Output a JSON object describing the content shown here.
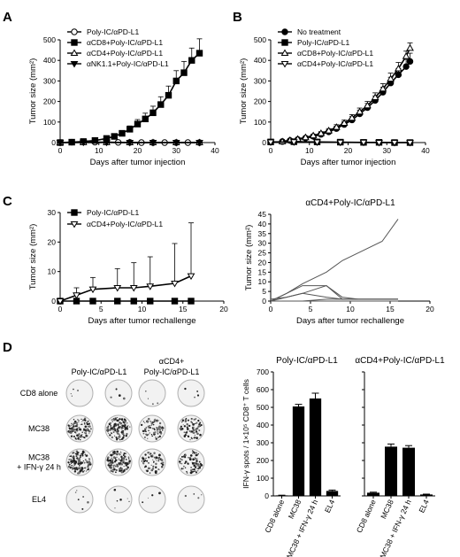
{
  "panels": {
    "a": "A",
    "b": "B",
    "c": "C",
    "d": "D"
  },
  "chart_data": [
    {
      "id": "A",
      "type": "line",
      "xlabel": "Days after tumor injection",
      "ylabel": "Tumor size (mm²)",
      "xlim": [
        0,
        40
      ],
      "ylim": [
        0,
        500
      ],
      "xticks": [
        0,
        10,
        20,
        30,
        40
      ],
      "yticks": [
        0,
        100,
        200,
        300,
        400,
        500
      ],
      "legend_position": "top-left",
      "series": [
        {
          "name": "Poly-IC/αPD-L1",
          "marker": "open-circle",
          "x": [
            0,
            3,
            6,
            9,
            12,
            15,
            18,
            21,
            24,
            27,
            30,
            33,
            36
          ],
          "y": [
            0,
            2,
            3,
            2,
            2,
            1,
            1,
            0,
            0,
            0,
            0,
            0,
            0
          ]
        },
        {
          "name": "αCD8+Poly-IC/αPD-L1",
          "marker": "filled-square",
          "x": [
            0,
            3,
            6,
            9,
            12,
            14,
            16,
            18,
            20,
            22,
            24,
            26,
            28,
            30,
            32,
            34,
            36
          ],
          "y": [
            0,
            2,
            5,
            10,
            20,
            30,
            45,
            65,
            90,
            115,
            145,
            185,
            230,
            300,
            340,
            400,
            435
          ],
          "err": [
            0,
            1,
            2,
            4,
            6,
            8,
            12,
            16,
            22,
            28,
            32,
            38,
            45,
            50,
            55,
            60,
            70
          ]
        },
        {
          "name": "αCD4+Poly-IC/αPD-L1",
          "marker": "open-triangle-up",
          "x": [
            0,
            6,
            12,
            18,
            24,
            30,
            36
          ],
          "y": [
            0,
            1,
            1,
            0,
            0,
            0,
            0
          ]
        },
        {
          "name": "αNK1.1+Poly-IC/αPD-L1",
          "marker": "filled-triangle-down",
          "x": [
            0,
            6,
            12,
            18,
            24,
            30,
            36
          ],
          "y": [
            0,
            1,
            1,
            0,
            0,
            0,
            0
          ]
        }
      ]
    },
    {
      "id": "B",
      "type": "line",
      "xlabel": "Days after tumor injection",
      "ylabel": "Tumor size (mm²)",
      "xlim": [
        0,
        40
      ],
      "ylim": [
        0,
        500
      ],
      "xticks": [
        0,
        10,
        20,
        30,
        40
      ],
      "yticks": [
        0,
        100,
        200,
        300,
        400,
        500
      ],
      "legend_position": "top-left",
      "series": [
        {
          "name": "No treatment",
          "marker": "filled-circle",
          "x": [
            3,
            5,
            7,
            9,
            11,
            13,
            15,
            17,
            19,
            21,
            23,
            25,
            27,
            29,
            31,
            33,
            35,
            36
          ],
          "y": [
            5,
            10,
            15,
            22,
            30,
            40,
            52,
            68,
            88,
            110,
            140,
            170,
            205,
            245,
            290,
            330,
            370,
            395
          ],
          "err": [
            2,
            3,
            4,
            5,
            6,
            8,
            10,
            12,
            14,
            16,
            18,
            20,
            22,
            25,
            28,
            30,
            35,
            40
          ]
        },
        {
          "name": "Poly-IC/αPD-L1",
          "marker": "filled-square",
          "x": [
            0,
            6,
            12,
            18,
            24,
            28,
            32,
            36
          ],
          "y": [
            3,
            4,
            3,
            2,
            1,
            1,
            0,
            0
          ]
        },
        {
          "name": "αCD8+Poly-IC/αPD-L1",
          "marker": "open-triangle-up",
          "x": [
            3,
            5,
            7,
            9,
            11,
            13,
            15,
            17,
            19,
            21,
            23,
            25,
            27,
            29,
            31,
            33,
            35,
            36
          ],
          "y": [
            5,
            11,
            17,
            25,
            34,
            45,
            58,
            75,
            95,
            120,
            150,
            180,
            220,
            262,
            310,
            360,
            420,
            460
          ],
          "err": [
            2,
            3,
            4,
            5,
            6,
            8,
            10,
            12,
            14,
            16,
            18,
            20,
            22,
            25,
            28,
            30,
            25,
            25
          ]
        },
        {
          "name": "αCD4+Poly-IC/αPD-L1",
          "marker": "open-triangle-down",
          "x": [
            0,
            6,
            12,
            18,
            24,
            28,
            32,
            36
          ],
          "y": [
            2,
            3,
            2,
            1,
            1,
            0,
            0,
            0
          ]
        }
      ]
    },
    {
      "id": "C-left",
      "type": "line",
      "xlabel": "Days after tumor rechallenge",
      "ylabel": "Tumor size (mm²)",
      "xlim": [
        0,
        20
      ],
      "ylim": [
        0,
        30
      ],
      "xticks": [
        0,
        5,
        10,
        15,
        20
      ],
      "yticks": [
        0,
        10,
        20,
        30
      ],
      "legend_position": "top-left",
      "series": [
        {
          "name": "Poly-IC/αPD-L1",
          "marker": "filled-square",
          "x": [
            0,
            2,
            4,
            7,
            9,
            11,
            14,
            16
          ],
          "y": [
            0,
            0,
            0,
            0,
            0,
            0,
            0,
            0
          ]
        },
        {
          "name": "αCD4+Poly-IC/αPD-L1",
          "marker": "open-triangle-down",
          "x": [
            0,
            2,
            4,
            7,
            9,
            11,
            14,
            16
          ],
          "y": [
            0,
            2,
            4,
            4.5,
            4.5,
            5,
            6,
            8.5
          ],
          "err": [
            0,
            2.5,
            4,
            6.5,
            8.5,
            10,
            13.5,
            18
          ]
        }
      ]
    },
    {
      "id": "C-right",
      "type": "line",
      "title": "αCD4+Poly-IC/αPD-L1",
      "xlabel": "Days after tumor rechallenge",
      "ylabel": "Tumor size (mm²)",
      "xlim": [
        0,
        20
      ],
      "ylim": [
        0,
        45
      ],
      "xticks": [
        0,
        5,
        10,
        15,
        20
      ],
      "yticks": [
        0,
        5,
        10,
        15,
        20,
        25,
        30,
        35,
        40,
        45
      ],
      "series": [
        {
          "x": [
            0,
            2,
            4,
            7,
            9,
            11,
            14,
            16
          ],
          "y": [
            0,
            4,
            9,
            15,
            21,
            25,
            31,
            42.5
          ]
        },
        {
          "x": [
            0,
            2,
            4,
            7,
            9,
            11,
            14,
            16
          ],
          "y": [
            0,
            4,
            8,
            8,
            2,
            1,
            1,
            1
          ]
        },
        {
          "x": [
            0,
            2,
            4,
            7,
            9,
            11,
            14,
            16
          ],
          "y": [
            0,
            2,
            4,
            2,
            1,
            1,
            1,
            1
          ]
        },
        {
          "x": [
            0,
            2,
            4,
            7,
            9,
            11,
            14,
            16
          ],
          "y": [
            1,
            2,
            4,
            8,
            1,
            1,
            1,
            1
          ]
        },
        {
          "x": [
            0,
            2,
            4,
            7,
            9,
            11,
            14,
            16
          ],
          "y": [
            0,
            0,
            0,
            1,
            1,
            1,
            1,
            1
          ]
        },
        {
          "x": [
            0,
            2,
            4,
            7,
            9,
            11,
            14,
            16
          ],
          "y": [
            0,
            0,
            0,
            0,
            0,
            0,
            0,
            0
          ]
        }
      ]
    },
    {
      "id": "D-bar-left",
      "type": "bar",
      "title": "Poly-IC/αPD-L1",
      "ylabel": "IFN-γ spots / 1×10⁵ CD8⁺ T cells",
      "ylim": [
        0,
        700
      ],
      "yticks": [
        0,
        100,
        200,
        300,
        400,
        500,
        600,
        700
      ],
      "categories": [
        "CD8 alone",
        "MC38",
        "MC38 + IFN-γ 24 h",
        "EL4"
      ],
      "values": [
        3,
        505,
        550,
        28
      ],
      "err": [
        1,
        12,
        30,
        5
      ]
    },
    {
      "id": "D-bar-right",
      "type": "bar",
      "title": "αCD4+Poly-IC/αPD-L1",
      "ylim": [
        0,
        700
      ],
      "yticks": [
        0,
        100,
        200,
        300,
        400,
        500,
        600,
        700
      ],
      "categories": [
        "CD8 alone",
        "MC38",
        "MC38 + IFN-γ 24 h",
        "EL4"
      ],
      "values": [
        18,
        278,
        272,
        8
      ],
      "err": [
        3,
        15,
        12,
        2
      ]
    }
  ],
  "elispot": {
    "col_titles": [
      [
        "Poly-IC/αPD-L1"
      ],
      [
        "αCD4+",
        "Poly-IC/αPD-L1"
      ]
    ],
    "rows": [
      {
        "label": [
          "CD8 alone"
        ],
        "density": [
          0.03,
          0.03,
          0.03,
          0.03
        ]
      },
      {
        "label": [
          "MC38"
        ],
        "density": [
          0.85,
          0.9,
          0.55,
          0.55
        ]
      },
      {
        "label": [
          "MC38",
          "+ IFN-γ 24 h"
        ],
        "density": [
          0.95,
          0.9,
          0.5,
          0.55
        ]
      },
      {
        "label": [
          "EL4"
        ],
        "density": [
          0.04,
          0.05,
          0.03,
          0.03
        ]
      }
    ]
  }
}
